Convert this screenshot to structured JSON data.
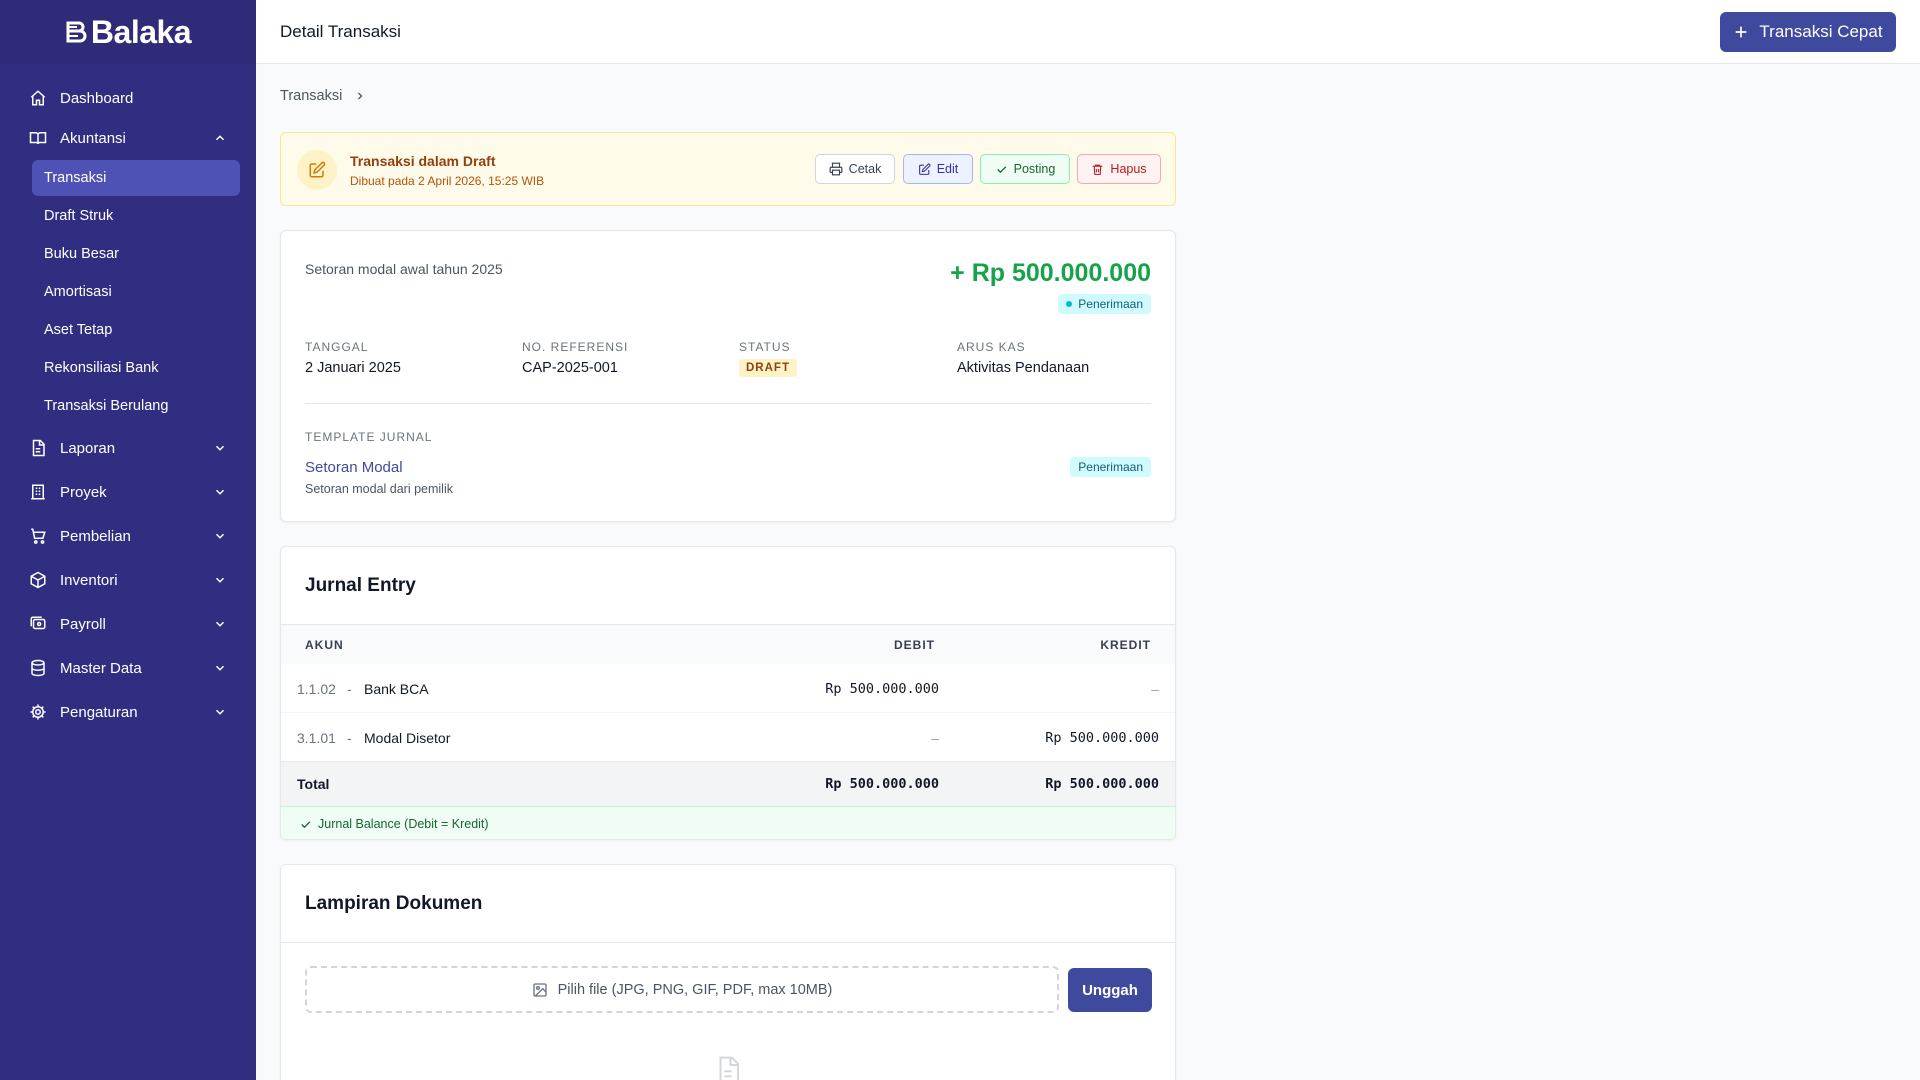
{
  "app": {
    "name": "Balaka"
  },
  "sidebar": {
    "items": [
      {
        "label": "Dashboard",
        "icon": "home-icon"
      },
      {
        "label": "Akuntansi",
        "icon": "book-icon",
        "expanded": true,
        "children": [
          "Transaksi",
          "Draft Struk",
          "Buku Besar",
          "Amortisasi",
          "Aset Tetap",
          "Rekonsiliasi Bank",
          "Transaksi Berulang"
        ],
        "active_child": "Transaksi"
      },
      {
        "label": "Laporan",
        "icon": "report-icon"
      },
      {
        "label": "Proyek",
        "icon": "building-icon"
      },
      {
        "label": "Pembelian",
        "icon": "cart-icon"
      },
      {
        "label": "Inventori",
        "icon": "box-icon"
      },
      {
        "label": "Payroll",
        "icon": "payroll-icon"
      },
      {
        "label": "Master Data",
        "icon": "database-icon"
      },
      {
        "label": "Pengaturan",
        "icon": "gear-icon"
      }
    ]
  },
  "header": {
    "title": "Detail Transaksi",
    "quick_button": "Transaksi Cepat"
  },
  "breadcrumb": {
    "items": [
      "Transaksi"
    ]
  },
  "banner": {
    "title": "Transaksi dalam Draft",
    "subtitle": "Dibuat pada 2 April 2026, 15:25 WIB",
    "actions": {
      "print": "Cetak",
      "edit": "Edit",
      "post": "Posting",
      "delete": "Hapus"
    }
  },
  "transaction": {
    "description": "Setoran modal awal tahun 2025",
    "amount": "+ Rp 500.000.000",
    "type_badge": "Penerimaan",
    "fields": {
      "date": {
        "label": "TANGGAL",
        "value": "2 Januari 2025"
      },
      "reference": {
        "label": "NO. REFERENSI",
        "value": "CAP-2025-001"
      },
      "status": {
        "label": "STATUS",
        "value": "DRAFT"
      },
      "cashflow": {
        "label": "ARUS KAS",
        "value": "Aktivitas Pendanaan"
      }
    },
    "template": {
      "label": "TEMPLATE JURNAL",
      "name": "Setoran Modal",
      "description": "Setoran modal dari pemilik",
      "badge": "Penerimaan"
    }
  },
  "journal": {
    "title": "Jurnal Entry",
    "columns": {
      "account": "AKUN",
      "debit": "DEBIT",
      "credit": "KREDIT"
    },
    "rows": [
      {
        "code": "1.1.02",
        "sep": "-",
        "name": "Bank BCA",
        "debit": "Rp 500.000.000",
        "credit": "–"
      },
      {
        "code": "3.1.01",
        "sep": "-",
        "name": "Modal Disetor",
        "debit": "–",
        "credit": "Rp 500.000.000"
      }
    ],
    "total": {
      "label": "Total",
      "debit": "Rp 500.000.000",
      "credit": "Rp 500.000.000"
    },
    "balance_note": "Jurnal Balance (Debit = Kredit)"
  },
  "attachments": {
    "title": "Lampiran Dokumen",
    "upload_placeholder": "Pilih file (JPG, PNG, GIF, PDF, max 10MB)",
    "upload_button": "Unggah"
  },
  "colors": {
    "sidebar": "#312e81",
    "primary": "#3f4a9e",
    "amount": "#16a34a",
    "draft_bg": "#fffbeb"
  }
}
